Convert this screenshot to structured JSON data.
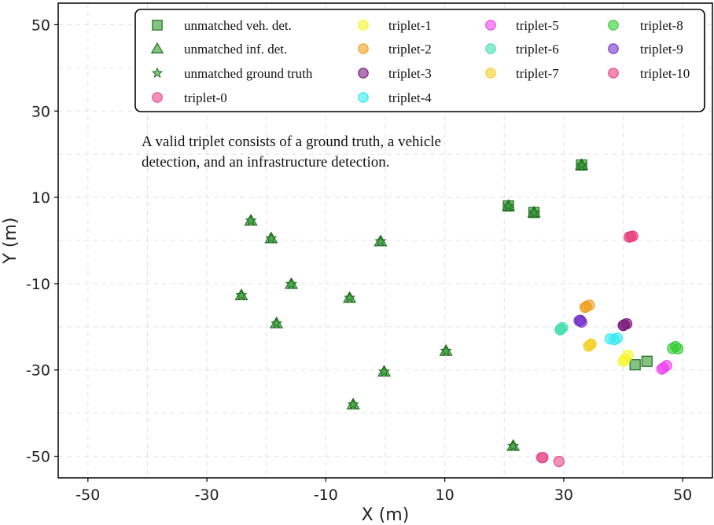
{
  "chart_data": {
    "type": "scatter",
    "xlabel": "X (m)",
    "ylabel": "Y (m)",
    "xlim": [
      -55,
      55
    ],
    "ylim": [
      -55,
      55
    ],
    "xticks": [
      -50,
      -30,
      -10,
      10,
      30,
      50
    ],
    "yticks": [
      50,
      30,
      10,
      -10,
      -30,
      -50
    ],
    "grid": true,
    "annotation": [
      "A valid triplet consists of a ground truth, a vehicle",
      "detection, and an infrastructure detection."
    ],
    "legend_position": "top",
    "series": [
      {
        "name": "unmatched veh. det.",
        "marker": "square",
        "color": "#2e9a2e",
        "points": [
          [
            20.7,
            8.0
          ],
          [
            25.0,
            6.5
          ],
          [
            33.0,
            17.5
          ],
          [
            42.0,
            -28.8
          ],
          [
            44.0,
            -28.0
          ]
        ]
      },
      {
        "name": "unmatched inf. det.",
        "marker": "triangle",
        "color": "#2e9a2e",
        "points": [
          [
            -22.6,
            4.6
          ],
          [
            -19.2,
            0.5
          ],
          [
            -15.8,
            -10.1
          ],
          [
            -24.2,
            -12.7
          ],
          [
            -18.3,
            -19.2
          ],
          [
            -0.8,
            -0.2
          ],
          [
            -6.0,
            -13.3
          ],
          [
            10.2,
            -25.6
          ],
          [
            -0.2,
            -30.4
          ],
          [
            -5.4,
            -38.0
          ],
          [
            21.5,
            -47.6
          ],
          [
            20.7,
            8.0
          ],
          [
            25.0,
            6.5
          ],
          [
            33.0,
            17.5
          ]
        ]
      },
      {
        "name": "unmatched ground truth",
        "marker": "star",
        "color": "#2e9a2e",
        "points": [
          [
            -22.6,
            4.6
          ],
          [
            -19.2,
            0.5
          ],
          [
            -15.8,
            -10.1
          ],
          [
            -24.2,
            -12.7
          ],
          [
            -18.3,
            -19.2
          ],
          [
            -0.8,
            -0.2
          ],
          [
            -6.0,
            -13.3
          ],
          [
            10.2,
            -25.6
          ],
          [
            -0.2,
            -30.4
          ],
          [
            -5.4,
            -38.0
          ],
          [
            21.5,
            -47.6
          ],
          [
            20.7,
            8.0
          ],
          [
            25.0,
            6.5
          ],
          [
            33.0,
            17.5
          ]
        ]
      },
      {
        "name": "triplet-0",
        "marker": "circle",
        "color": "#e64a8c",
        "points": [
          [
            26.5,
            -50.3
          ],
          [
            29.2,
            -51.2
          ],
          [
            26.3,
            -50.3
          ]
        ]
      },
      {
        "name": "triplet-1",
        "marker": "circle",
        "color": "#f5f52a",
        "points": [
          [
            40.0,
            -28.0
          ],
          [
            40.8,
            -26.6
          ],
          [
            40.3,
            -27.5
          ]
        ]
      },
      {
        "name": "triplet-2",
        "marker": "circle",
        "color": "#f0a020",
        "points": [
          [
            33.8,
            -15.3
          ],
          [
            34.3,
            -15.0
          ],
          [
            33.6,
            -15.5
          ]
        ]
      },
      {
        "name": "triplet-3",
        "marker": "circle",
        "color": "#7a1a7a",
        "points": [
          [
            40.2,
            -19.5
          ],
          [
            40.6,
            -19.3
          ],
          [
            40.0,
            -19.7
          ]
        ]
      },
      {
        "name": "triplet-4",
        "marker": "circle",
        "color": "#33eaf0",
        "points": [
          [
            37.8,
            -22.8
          ],
          [
            38.5,
            -23.0
          ],
          [
            39.0,
            -22.6
          ]
        ]
      },
      {
        "name": "triplet-5",
        "marker": "circle",
        "color": "#ee44ee",
        "points": [
          [
            46.8,
            -29.5
          ],
          [
            47.3,
            -29.0
          ],
          [
            46.5,
            -29.8
          ]
        ]
      },
      {
        "name": "triplet-6",
        "marker": "circle",
        "color": "#44e0a8",
        "points": [
          [
            29.5,
            -20.5
          ],
          [
            29.8,
            -20.2
          ],
          [
            29.4,
            -20.7
          ]
        ]
      },
      {
        "name": "triplet-7",
        "marker": "circle",
        "color": "#f5d02a",
        "points": [
          [
            34.4,
            -24.2
          ],
          [
            34.2,
            -24.5
          ],
          [
            34.6,
            -24.0
          ]
        ]
      },
      {
        "name": "triplet-8",
        "marker": "circle",
        "color": "#33cc33",
        "points": [
          [
            48.3,
            -25.0
          ],
          [
            48.8,
            -24.6
          ],
          [
            49.2,
            -25.1
          ]
        ]
      },
      {
        "name": "triplet-9",
        "marker": "circle",
        "color": "#7733cc",
        "points": [
          [
            32.6,
            -18.6
          ],
          [
            33.0,
            -18.9
          ],
          [
            32.8,
            -18.5
          ]
        ]
      },
      {
        "name": "triplet-10",
        "marker": "circle",
        "color": "#e8407a",
        "points": [
          [
            41.0,
            0.8
          ],
          [
            41.6,
            1.0
          ],
          [
            41.3,
            0.9
          ]
        ]
      }
    ]
  }
}
